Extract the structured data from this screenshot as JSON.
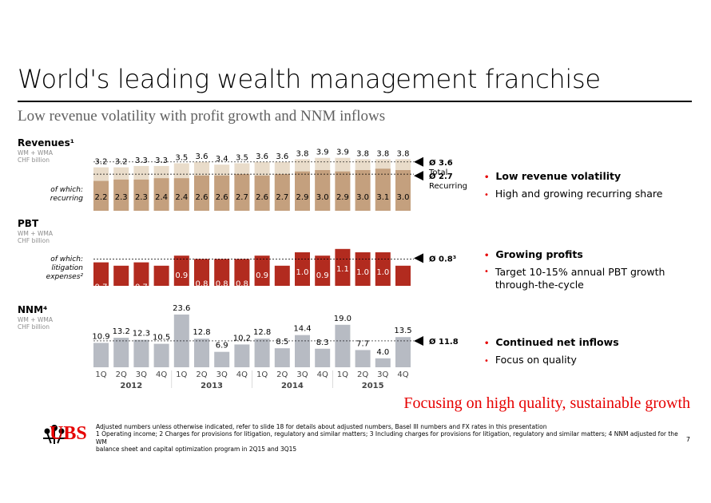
{
  "title": "World's leading wealth management franchise",
  "subtitle": "Low revenue volatility with profit growth and NNM inflows",
  "sections": {
    "revenues": {
      "title": "Revenues¹",
      "sub": "WM + WMA\nCHF billion",
      "row_label": "of which:\nrecurring"
    },
    "pbt": {
      "title": "PBT",
      "sub": "WM + WMA\nCHF billion",
      "row_label": "of which:\nlitigation\nexpenses²"
    },
    "nnm": {
      "title": "NNM⁴",
      "sub": "WM + WMA\nCHF billion"
    }
  },
  "bullets": {
    "revenues": [
      "Low revenue volatility",
      "High and growing recurring share"
    ],
    "pbt": [
      "Growing profits",
      "Target 10-15% annual PBT growth\nthrough-the-cycle"
    ],
    "nnm": [
      "Continued net inflows",
      "Focus on quality"
    ]
  },
  "tagline": "Focusing on high quality, sustainable growth",
  "logo_text": "UBS",
  "footnote": "Adjusted numbers unless otherwise indicated, refer to slide 18 for details about adjusted numbers, Basel III numbers and FX rates in this presentation\n1 Operating income; 2 Charges for provisions for litigation, regulatory and similar matters; 3 Including charges for provisions for litigation, regulatory and similar matters; 4 NNM adjusted for the WM\nbalance sheet and capital optimization program in 2Q15 and 3Q15",
  "page_number": "7",
  "colors": {
    "red": "#e60000",
    "total": "#e9dcca",
    "recurring": "#c4a07e",
    "pbt": "#b22b1f",
    "nnm": "#b7bbc3"
  },
  "chart_data": {
    "type": "bar",
    "categories": [
      "1Q",
      "2Q",
      "3Q",
      "4Q",
      "1Q",
      "2Q",
      "3Q",
      "4Q",
      "1Q",
      "2Q",
      "3Q",
      "4Q",
      "1Q",
      "2Q",
      "3Q",
      "4Q"
    ],
    "years": [
      "2012",
      "2013",
      "2014",
      "2015"
    ],
    "panels": [
      {
        "name": "revenues",
        "series": [
          {
            "name": "Total",
            "values": [
              3.2,
              3.2,
              3.3,
              3.3,
              3.5,
              3.6,
              3.4,
              3.5,
              3.6,
              3.6,
              3.8,
              3.9,
              3.9,
              3.8,
              3.8,
              3.8
            ]
          },
          {
            "name": "Recurring",
            "values": [
              2.2,
              2.3,
              2.3,
              2.4,
              2.4,
              2.6,
              2.6,
              2.7,
              2.6,
              2.7,
              2.9,
              3.0,
              2.9,
              3.0,
              3.1,
              3.0
            ]
          }
        ],
        "average_lines": [
          {
            "label": "Ø 3.6",
            "sublabel": "Total",
            "value": 3.6
          },
          {
            "label": "Ø 2.7",
            "sublabel": "Recurring",
            "value": 2.7
          }
        ]
      },
      {
        "name": "PBT",
        "series": [
          {
            "name": "PBT",
            "values": [
              0.7,
              0.6,
              0.7,
              0.6,
              0.9,
              0.8,
              0.8,
              0.8,
              0.9,
              0.6,
              1.0,
              0.9,
              1.1,
              1.0,
              1.0,
              0.6
            ]
          }
        ],
        "average_lines": [
          {
            "label": "Ø 0.8³",
            "value": 0.8
          }
        ]
      },
      {
        "name": "NNM",
        "series": [
          {
            "name": "NNM",
            "values": [
              10.9,
              13.2,
              12.3,
              10.5,
              23.6,
              12.8,
              6.9,
              10.2,
              12.8,
              8.5,
              14.4,
              8.3,
              19.0,
              7.7,
              4.0,
              13.5
            ]
          }
        ],
        "average_lines": [
          {
            "label": "Ø 11.8",
            "value": 11.8
          }
        ]
      }
    ]
  }
}
